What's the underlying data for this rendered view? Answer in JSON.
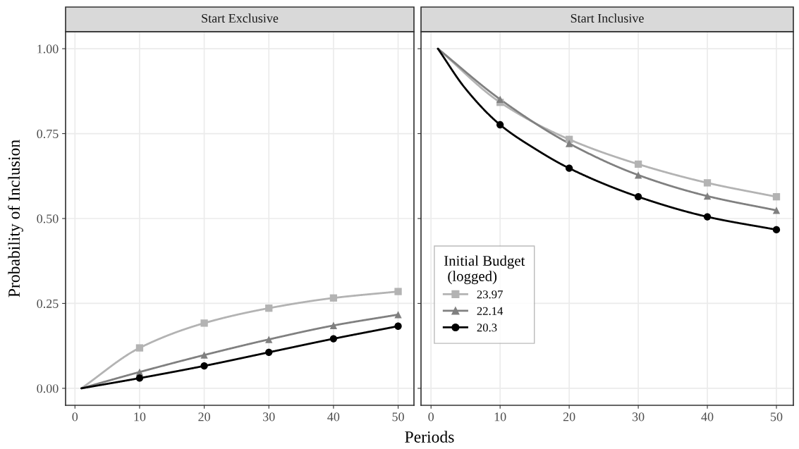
{
  "chart_data": [
    {
      "type": "line",
      "title": "Start Exclusive",
      "xlabel": "Periods",
      "ylabel": "Probability of Inclusion",
      "xlim": [
        -1.45,
        52.45
      ],
      "xticks": [
        0,
        10,
        20,
        30,
        40,
        50
      ],
      "ylim": [
        -0.05,
        1.05
      ],
      "yticks": [
        {
          "value": 0,
          "label": "0.00"
        },
        {
          "value": 0.25,
          "label": "0.25"
        },
        {
          "value": 0.5,
          "label": "0.50"
        },
        {
          "value": 0.75,
          "label": "0.75"
        },
        {
          "value": 1,
          "label": "1.00"
        }
      ],
      "grid": true,
      "series": [
        {
          "type": "line",
          "color": "#b3b3b3",
          "x": [
            1,
            10,
            20,
            30,
            40,
            50
          ],
          "values": [
            0,
            0.119,
            0.192,
            0.236,
            0.266,
            0.285
          ],
          "marker": "none"
        },
        {
          "type": "line",
          "color": "#808080",
          "x": [
            1,
            10,
            20,
            30,
            40,
            50
          ],
          "values": [
            0,
            0.048,
            0.098,
            0.144,
            0.185,
            0.217
          ],
          "marker": "none"
        },
        {
          "type": "line",
          "color": "#000000",
          "x": [
            1,
            10,
            20,
            30,
            40,
            50
          ],
          "values": [
            0,
            0.03,
            0.066,
            0.106,
            0.146,
            0.183
          ],
          "marker": "none"
        },
        {
          "type": "scatter",
          "color": "#b3b3b3",
          "x": [
            10,
            20,
            30,
            40,
            50
          ],
          "values": [
            0.119,
            0.192,
            0.236,
            0.266,
            0.285
          ],
          "marker": "square"
        },
        {
          "type": "scatter",
          "color": "#808080",
          "x": [
            10,
            20,
            30,
            40,
            50
          ],
          "values": [
            0.048,
            0.098,
            0.144,
            0.185,
            0.217
          ],
          "marker": "triangle"
        },
        {
          "type": "scatter",
          "color": "#000000",
          "x": [
            10,
            20,
            30,
            40,
            50
          ],
          "values": [
            0.03,
            0.066,
            0.106,
            0.146,
            0.183
          ],
          "marker": "circle"
        }
      ]
    },
    {
      "type": "line",
      "title": "Start Inclusive",
      "xlim": [
        -1.45,
        52.45
      ],
      "xticks": [
        0,
        10,
        20,
        30,
        40,
        50
      ],
      "ylim": [
        -0.05,
        1.05
      ],
      "yticks": [
        {
          "value": 0,
          "label": null
        },
        {
          "value": 0.25,
          "label": null
        },
        {
          "value": 0.5,
          "label": null
        },
        {
          "value": 0.75,
          "label": null
        },
        {
          "value": 1,
          "label": null
        }
      ],
      "grid": true,
      "tick_labels": "x",
      "legend": "bottom left",
      "legend_title": "Initial Budget\n (logged)",
      "series": [
        {
          "type": "line",
          "color": "#b3b3b3",
          "x": [
            1,
            10,
            20,
            30,
            40,
            50
          ],
          "values": [
            1,
            0.842,
            0.733,
            0.66,
            0.605,
            0.564
          ],
          "marker": "none"
        },
        {
          "type": "line",
          "color": "#808080",
          "x": [
            1,
            10,
            20,
            30,
            40,
            50
          ],
          "values": [
            1,
            0.851,
            0.721,
            0.628,
            0.566,
            0.524
          ],
          "marker": "none"
        },
        {
          "type": "line",
          "color": "#000000",
          "x": [
            1,
            5,
            10,
            15,
            20,
            30,
            40,
            50
          ],
          "values": [
            1,
            0.882,
            0.776,
            0.706,
            0.648,
            0.564,
            0.505,
            0.467
          ],
          "marker": "none"
        },
        {
          "type": "scatter",
          "name": "23.97",
          "color": "#b3b3b3",
          "x": [
            10,
            20,
            30,
            40,
            50
          ],
          "values": [
            0.842,
            0.733,
            0.66,
            0.605,
            0.564
          ],
          "marker": "square"
        },
        {
          "type": "scatter",
          "name": "22.14",
          "color": "#808080",
          "x": [
            10,
            20,
            30,
            40,
            50
          ],
          "values": [
            0.851,
            0.721,
            0.628,
            0.566,
            0.524
          ],
          "marker": "triangle"
        },
        {
          "type": "scatter",
          "name": "20.3",
          "color": "#000000",
          "x": [
            10,
            20,
            30,
            40,
            50
          ],
          "values": [
            0.776,
            0.648,
            0.564,
            0.505,
            0.467
          ],
          "marker": "circle"
        }
      ]
    }
  ]
}
